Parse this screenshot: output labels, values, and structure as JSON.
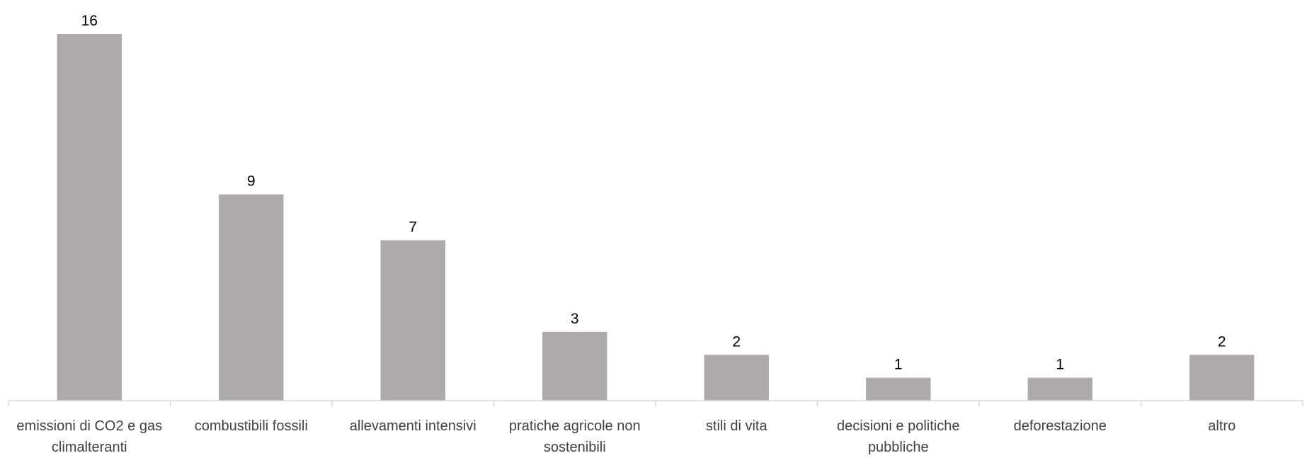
{
  "chart_data": {
    "type": "bar",
    "categories": [
      "emissioni di CO2 e gas climalteranti",
      "combustibili fossili",
      "allevamenti intensivi",
      "pratiche agricole non sostenibili",
      "stili di vita",
      "decisioni e politiche pubbliche",
      "deforestazione",
      "altro"
    ],
    "category_lines": [
      [
        "emissioni di CO2 e gas",
        "climalteranti"
      ],
      [
        "combustibili fossili"
      ],
      [
        "allevamenti intensivi"
      ],
      [
        "pratiche agricole non",
        "sostenibili"
      ],
      [
        "stili di vita"
      ],
      [
        "decisioni e politiche",
        "pubbliche"
      ],
      [
        "deforestazione"
      ],
      [
        "altro"
      ]
    ],
    "values": [
      16,
      9,
      7,
      3,
      2,
      1,
      1,
      2
    ],
    "data_labels": [
      "16",
      "9",
      "7",
      "3",
      "2",
      "1",
      "1",
      "2"
    ],
    "title": "",
    "xlabel": "",
    "ylabel": "",
    "ylim": [
      0,
      16
    ],
    "grid": false,
    "legend": "none",
    "colors": {
      "bar": "#aeaaaa",
      "axis": "#d9d9d9",
      "text": "#404040",
      "label": "#000000"
    }
  }
}
